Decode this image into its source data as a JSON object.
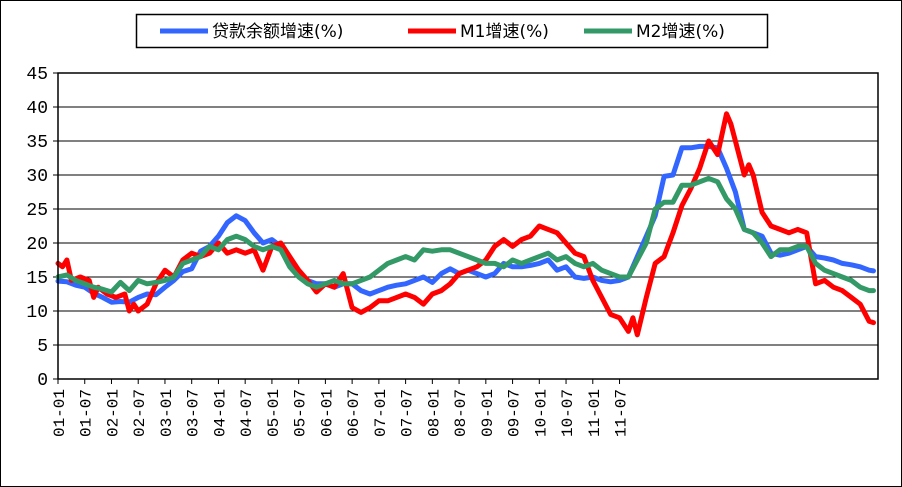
{
  "chart_data": {
    "type": "line",
    "ylim": [
      0,
      45
    ],
    "yticks": [
      "0",
      "5",
      "10",
      "15",
      "20",
      "25",
      "30",
      "35",
      "40",
      "45"
    ],
    "xticks": [
      "01-01",
      "01-07",
      "02-01",
      "02-07",
      "03-01",
      "03-07",
      "04-01",
      "04-07",
      "05-01",
      "05-07",
      "06-01",
      "06-07",
      "07-01",
      "07-07",
      "08-01",
      "08-07",
      "09-01",
      "09-07",
      "10-01",
      "10-07",
      "11-01",
      "11-07"
    ],
    "grid": "horizontal",
    "legend_position": "top",
    "series": [
      {
        "name": "贷款余额增速(%)",
        "color": "#3366ff",
        "points": [
          [
            0,
            14.4
          ],
          [
            2,
            14.3
          ],
          [
            4,
            13.8
          ],
          [
            6,
            13.5
          ],
          [
            8,
            12.6
          ],
          [
            10,
            12.0
          ],
          [
            12,
            11.3
          ],
          [
            14,
            11.4
          ],
          [
            16,
            11.3
          ],
          [
            18,
            12.0
          ],
          [
            20,
            12.5
          ],
          [
            22,
            12.4
          ],
          [
            24,
            13.5
          ],
          [
            26,
            14.5
          ],
          [
            28,
            15.8
          ],
          [
            30,
            16.2
          ],
          [
            32,
            18.8
          ],
          [
            34,
            19.5
          ],
          [
            36,
            21.0
          ],
          [
            38,
            23.0
          ],
          [
            40,
            24.0
          ],
          [
            42,
            23.3
          ],
          [
            44,
            21.5
          ],
          [
            46,
            20.0
          ],
          [
            48,
            20.5
          ],
          [
            50,
            19.5
          ],
          [
            52,
            17.5
          ],
          [
            54,
            15.5
          ],
          [
            56,
            14.5
          ],
          [
            58,
            14.0
          ],
          [
            60,
            14.0
          ],
          [
            62,
            13.5
          ],
          [
            64,
            14.0
          ],
          [
            66,
            14.0
          ],
          [
            68,
            13.0
          ],
          [
            70,
            12.5
          ],
          [
            72,
            13.0
          ],
          [
            74,
            13.5
          ],
          [
            76,
            13.8
          ],
          [
            78,
            14.0
          ],
          [
            80,
            14.5
          ],
          [
            82,
            15.0
          ],
          [
            84,
            14.2
          ],
          [
            86,
            15.5
          ],
          [
            88,
            16.2
          ],
          [
            90,
            15.5
          ],
          [
            92,
            16.0
          ],
          [
            94,
            15.5
          ],
          [
            96,
            15.0
          ],
          [
            98,
            15.5
          ],
          [
            100,
            17.0
          ],
          [
            102,
            16.5
          ],
          [
            104,
            16.5
          ],
          [
            106,
            16.7
          ],
          [
            108,
            17.0
          ],
          [
            110,
            17.5
          ],
          [
            112,
            16.0
          ],
          [
            114,
            16.5
          ],
          [
            116,
            15.0
          ],
          [
            118,
            14.8
          ],
          [
            120,
            15.0
          ],
          [
            122,
            14.5
          ],
          [
            124,
            14.3
          ],
          [
            126,
            14.5
          ],
          [
            128,
            15.0
          ],
          [
            130,
            18.0
          ],
          [
            132,
            21.0
          ],
          [
            134,
            24.0
          ],
          [
            136,
            29.8
          ],
          [
            138,
            30.0
          ],
          [
            140,
            34.0
          ],
          [
            142,
            34.0
          ],
          [
            144,
            34.2
          ],
          [
            146,
            34.2
          ],
          [
            148,
            34.0
          ],
          [
            150,
            31.0
          ],
          [
            152,
            27.5
          ],
          [
            154,
            22.0
          ],
          [
            156,
            21.5
          ],
          [
            158,
            21.0
          ],
          [
            160,
            18.5
          ],
          [
            162,
            18.2
          ],
          [
            164,
            18.5
          ],
          [
            166,
            19.0
          ],
          [
            168,
            19.5
          ],
          [
            170,
            18.0
          ],
          [
            172,
            17.8
          ],
          [
            174,
            17.5
          ],
          [
            176,
            17.0
          ],
          [
            178,
            16.8
          ],
          [
            180,
            16.5
          ],
          [
            182,
            16.0
          ],
          [
            183,
            15.9
          ]
        ]
      },
      {
        "name": "M1增速(%)",
        "color": "#ff0000",
        "points": [
          [
            0,
            17.0
          ],
          [
            1,
            16.5
          ],
          [
            2,
            17.5
          ],
          [
            3,
            14.5
          ],
          [
            5,
            15.0
          ],
          [
            7,
            14.5
          ],
          [
            8,
            12.0
          ],
          [
            9,
            13.5
          ],
          [
            11,
            12.5
          ],
          [
            13,
            12.0
          ],
          [
            15,
            12.5
          ],
          [
            16,
            10.0
          ],
          [
            17,
            11.0
          ],
          [
            18,
            10.0
          ],
          [
            20,
            11.0
          ],
          [
            22,
            14.0
          ],
          [
            24,
            16.0
          ],
          [
            26,
            15.0
          ],
          [
            28,
            17.5
          ],
          [
            30,
            18.5
          ],
          [
            32,
            18.0
          ],
          [
            34,
            18.5
          ],
          [
            36,
            20.0
          ],
          [
            38,
            18.5
          ],
          [
            40,
            19.0
          ],
          [
            42,
            18.5
          ],
          [
            44,
            19.0
          ],
          [
            46,
            16.0
          ],
          [
            48,
            19.5
          ],
          [
            50,
            20.0
          ],
          [
            52,
            18.0
          ],
          [
            54,
            16.0
          ],
          [
            56,
            14.5
          ],
          [
            58,
            12.8
          ],
          [
            60,
            14.0
          ],
          [
            62,
            13.5
          ],
          [
            64,
            15.5
          ],
          [
            66,
            10.5
          ],
          [
            68,
            9.8
          ],
          [
            70,
            10.5
          ],
          [
            72,
            11.5
          ],
          [
            74,
            11.5
          ],
          [
            76,
            12.0
          ],
          [
            78,
            12.5
          ],
          [
            80,
            12.0
          ],
          [
            82,
            11.0
          ],
          [
            84,
            12.5
          ],
          [
            86,
            13.0
          ],
          [
            88,
            14.0
          ],
          [
            90,
            15.5
          ],
          [
            92,
            16.0
          ],
          [
            94,
            16.5
          ],
          [
            96,
            17.5
          ],
          [
            98,
            19.5
          ],
          [
            100,
            20.5
          ],
          [
            102,
            19.5
          ],
          [
            104,
            20.5
          ],
          [
            106,
            21.0
          ],
          [
            108,
            22.5
          ],
          [
            110,
            22.0
          ],
          [
            112,
            21.5
          ],
          [
            114,
            20.0
          ],
          [
            116,
            18.5
          ],
          [
            118,
            18.0
          ],
          [
            120,
            14.5
          ],
          [
            122,
            12.0
          ],
          [
            124,
            9.5
          ],
          [
            126,
            9.0
          ],
          [
            128,
            7.0
          ],
          [
            129,
            9.0
          ],
          [
            130,
            6.5
          ],
          [
            132,
            12.0
          ],
          [
            134,
            17.0
          ],
          [
            136,
            18.0
          ],
          [
            138,
            21.5
          ],
          [
            140,
            25.5
          ],
          [
            142,
            28.0
          ],
          [
            144,
            31.0
          ],
          [
            146,
            35.0
          ],
          [
            148,
            33.0
          ],
          [
            150,
            39.0
          ],
          [
            151,
            37.5
          ],
          [
            152,
            35.0
          ],
          [
            154,
            30.0
          ],
          [
            155,
            31.5
          ],
          [
            156,
            30.0
          ],
          [
            158,
            24.5
          ],
          [
            160,
            22.5
          ],
          [
            162,
            22.0
          ],
          [
            164,
            21.5
          ],
          [
            166,
            22.0
          ],
          [
            168,
            21.5
          ],
          [
            170,
            14.0
          ],
          [
            172,
            14.5
          ],
          [
            174,
            13.5
          ],
          [
            176,
            13.0
          ],
          [
            178,
            12.0
          ],
          [
            180,
            11.0
          ],
          [
            182,
            8.5
          ],
          [
            183,
            8.3
          ]
        ]
      },
      {
        "name": "M2增速(%)",
        "color": "#339966",
        "points": [
          [
            0,
            15.0
          ],
          [
            2,
            15.3
          ],
          [
            4,
            14.5
          ],
          [
            6,
            14.0
          ],
          [
            8,
            13.5
          ],
          [
            10,
            13.2
          ],
          [
            12,
            12.8
          ],
          [
            14,
            14.2
          ],
          [
            16,
            13.0
          ],
          [
            18,
            14.5
          ],
          [
            20,
            14.0
          ],
          [
            22,
            14.2
          ],
          [
            24,
            14.5
          ],
          [
            26,
            15.0
          ],
          [
            28,
            17.0
          ],
          [
            30,
            17.5
          ],
          [
            32,
            18.0
          ],
          [
            34,
            19.5
          ],
          [
            36,
            19.0
          ],
          [
            38,
            20.5
          ],
          [
            40,
            21.0
          ],
          [
            42,
            20.5
          ],
          [
            44,
            19.5
          ],
          [
            46,
            19.0
          ],
          [
            48,
            19.5
          ],
          [
            50,
            19.0
          ],
          [
            52,
            16.5
          ],
          [
            54,
            15.0
          ],
          [
            56,
            14.0
          ],
          [
            58,
            13.5
          ],
          [
            60,
            14.0
          ],
          [
            62,
            14.5
          ],
          [
            64,
            14.0
          ],
          [
            66,
            14.0
          ],
          [
            68,
            14.5
          ],
          [
            70,
            15.0
          ],
          [
            72,
            16.0
          ],
          [
            74,
            17.0
          ],
          [
            76,
            17.5
          ],
          [
            78,
            18.0
          ],
          [
            80,
            17.5
          ],
          [
            82,
            19.0
          ],
          [
            84,
            18.8
          ],
          [
            86,
            19.0
          ],
          [
            88,
            19.0
          ],
          [
            90,
            18.5
          ],
          [
            92,
            18.0
          ],
          [
            94,
            17.5
          ],
          [
            96,
            17.0
          ],
          [
            98,
            17.0
          ],
          [
            100,
            16.5
          ],
          [
            102,
            17.5
          ],
          [
            104,
            17.0
          ],
          [
            106,
            17.5
          ],
          [
            108,
            18.0
          ],
          [
            110,
            18.5
          ],
          [
            112,
            17.5
          ],
          [
            114,
            18.0
          ],
          [
            116,
            17.0
          ],
          [
            118,
            16.5
          ],
          [
            120,
            17.0
          ],
          [
            122,
            16.0
          ],
          [
            124,
            15.5
          ],
          [
            126,
            15.0
          ],
          [
            128,
            15.0
          ],
          [
            130,
            17.5
          ],
          [
            132,
            20.0
          ],
          [
            134,
            25.0
          ],
          [
            136,
            26.0
          ],
          [
            138,
            26.0
          ],
          [
            140,
            28.5
          ],
          [
            142,
            28.5
          ],
          [
            144,
            29.0
          ],
          [
            146,
            29.5
          ],
          [
            148,
            29.0
          ],
          [
            150,
            26.5
          ],
          [
            152,
            25.0
          ],
          [
            154,
            22.0
          ],
          [
            156,
            21.5
          ],
          [
            158,
            20.0
          ],
          [
            160,
            18.0
          ],
          [
            162,
            19.0
          ],
          [
            164,
            19.0
          ],
          [
            166,
            19.5
          ],
          [
            168,
            19.5
          ],
          [
            170,
            17.0
          ],
          [
            172,
            16.0
          ],
          [
            174,
            15.5
          ],
          [
            176,
            15.0
          ],
          [
            178,
            14.5
          ],
          [
            180,
            13.5
          ],
          [
            182,
            13.0
          ],
          [
            183,
            13.0
          ]
        ]
      }
    ]
  }
}
